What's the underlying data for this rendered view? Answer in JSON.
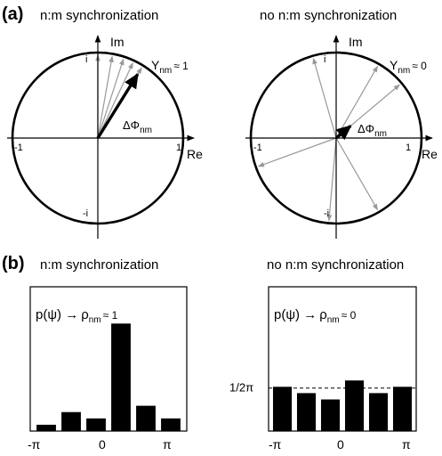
{
  "panel_a": {
    "label": "(a)",
    "left": {
      "title": "n:m synchronization",
      "axes": {
        "re": "Re",
        "im": "Im",
        "pos_real": "1",
        "neg_real": "-1",
        "pos_imag": "i",
        "neg_imag": "-i"
      },
      "stat_symbol": "Υ",
      "stat_sub": "nm",
      "stat_rel": "≈ 1",
      "mean_label": "ΔΦ",
      "mean_sub": "nm",
      "gray_arrow_angles_deg": [
        58,
        65,
        72,
        80,
        90
      ],
      "mean_arrow": {
        "angle_deg": 58,
        "length_fraction": 0.88
      }
    },
    "right": {
      "title": "no n:m synchronization",
      "axes": {
        "re": "Re",
        "im": "Im",
        "pos_real": "1",
        "neg_real": "-1",
        "pos_imag": "i",
        "neg_imag": "-i"
      },
      "stat_symbol": "Υ",
      "stat_sub": "nm",
      "stat_rel": "≈ 0",
      "mean_label": "ΔΦ",
      "mean_sub": "nm",
      "gray_arrow_angles_deg": [
        106,
        60,
        40,
        200,
        300,
        265
      ],
      "mean_arrow": {
        "angle_deg": 40,
        "length_fraction": 0.22
      }
    }
  },
  "panel_b": {
    "label": "(b)",
    "left": {
      "title": "n:m synchronization",
      "formula": {
        "p": "p(ψ) →",
        "rho": "ρ",
        "rho_sub": "nm",
        "rel": "≈ 1"
      },
      "ticks": [
        "-π",
        "0",
        "π"
      ],
      "bar_values": [
        0.05,
        0.15,
        0.1,
        0.85,
        0.2,
        0.1
      ],
      "ylim": [
        0,
        1
      ]
    },
    "right": {
      "title": "no n:m synchronization",
      "formula": {
        "p": "p(ψ) →",
        "rho": "ρ",
        "rho_sub": "nm",
        "rel": "≈ 0"
      },
      "ticks": [
        "-π",
        "0",
        "π"
      ],
      "level_label": "1/2π",
      "level_value": 0.34,
      "bar_values": [
        0.35,
        0.3,
        0.25,
        0.4,
        0.3,
        0.35
      ],
      "ylim": [
        0,
        1
      ]
    }
  },
  "colors": {
    "line": "#000000",
    "gray_arrow": "#999999",
    "mean_arrow": "#000000",
    "bar": "#000000"
  }
}
